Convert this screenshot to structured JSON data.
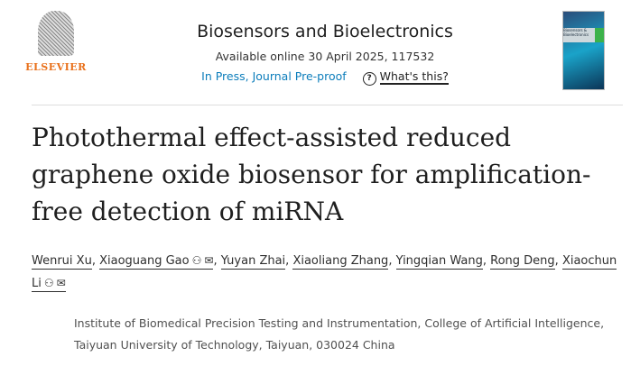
{
  "publisher": {
    "name": "ELSEVIER"
  },
  "journal": {
    "title": "Biosensors and Bioelectronics",
    "available": "Available online 30 April 2025, 117532",
    "status": "In Press, Journal Pre-proof",
    "help_label": "What's this?",
    "cover_title": "Biosensors & Bioelectronics"
  },
  "article": {
    "title": "Photothermal effect-assisted reduced graphene oxide biosensor for amplification-free detection of miRNA"
  },
  "authors": [
    {
      "name": "Wenrui Xu",
      "sep": ","
    },
    {
      "name": "Xiaoguang Gao",
      "sep": ",",
      "corresponding": true
    },
    {
      "name": "Yuyan Zhai",
      "sep": ","
    },
    {
      "name": "Xiaoliang Zhang",
      "sep": ","
    },
    {
      "name": "Yingqian Wang",
      "sep": ","
    },
    {
      "name": "Rong Deng",
      "sep": ","
    },
    {
      "name": "Xiaochun Li",
      "sep": "",
      "corresponding": true
    }
  ],
  "affiliation": "Institute of Biomedical Precision Testing and Instrumentation, College of Artificial Intelligence, Taiyuan University of Technology, Taiyuan, 030024 China",
  "colors": {
    "accent": "#0c7dbb",
    "publisher": "#e9711c"
  }
}
